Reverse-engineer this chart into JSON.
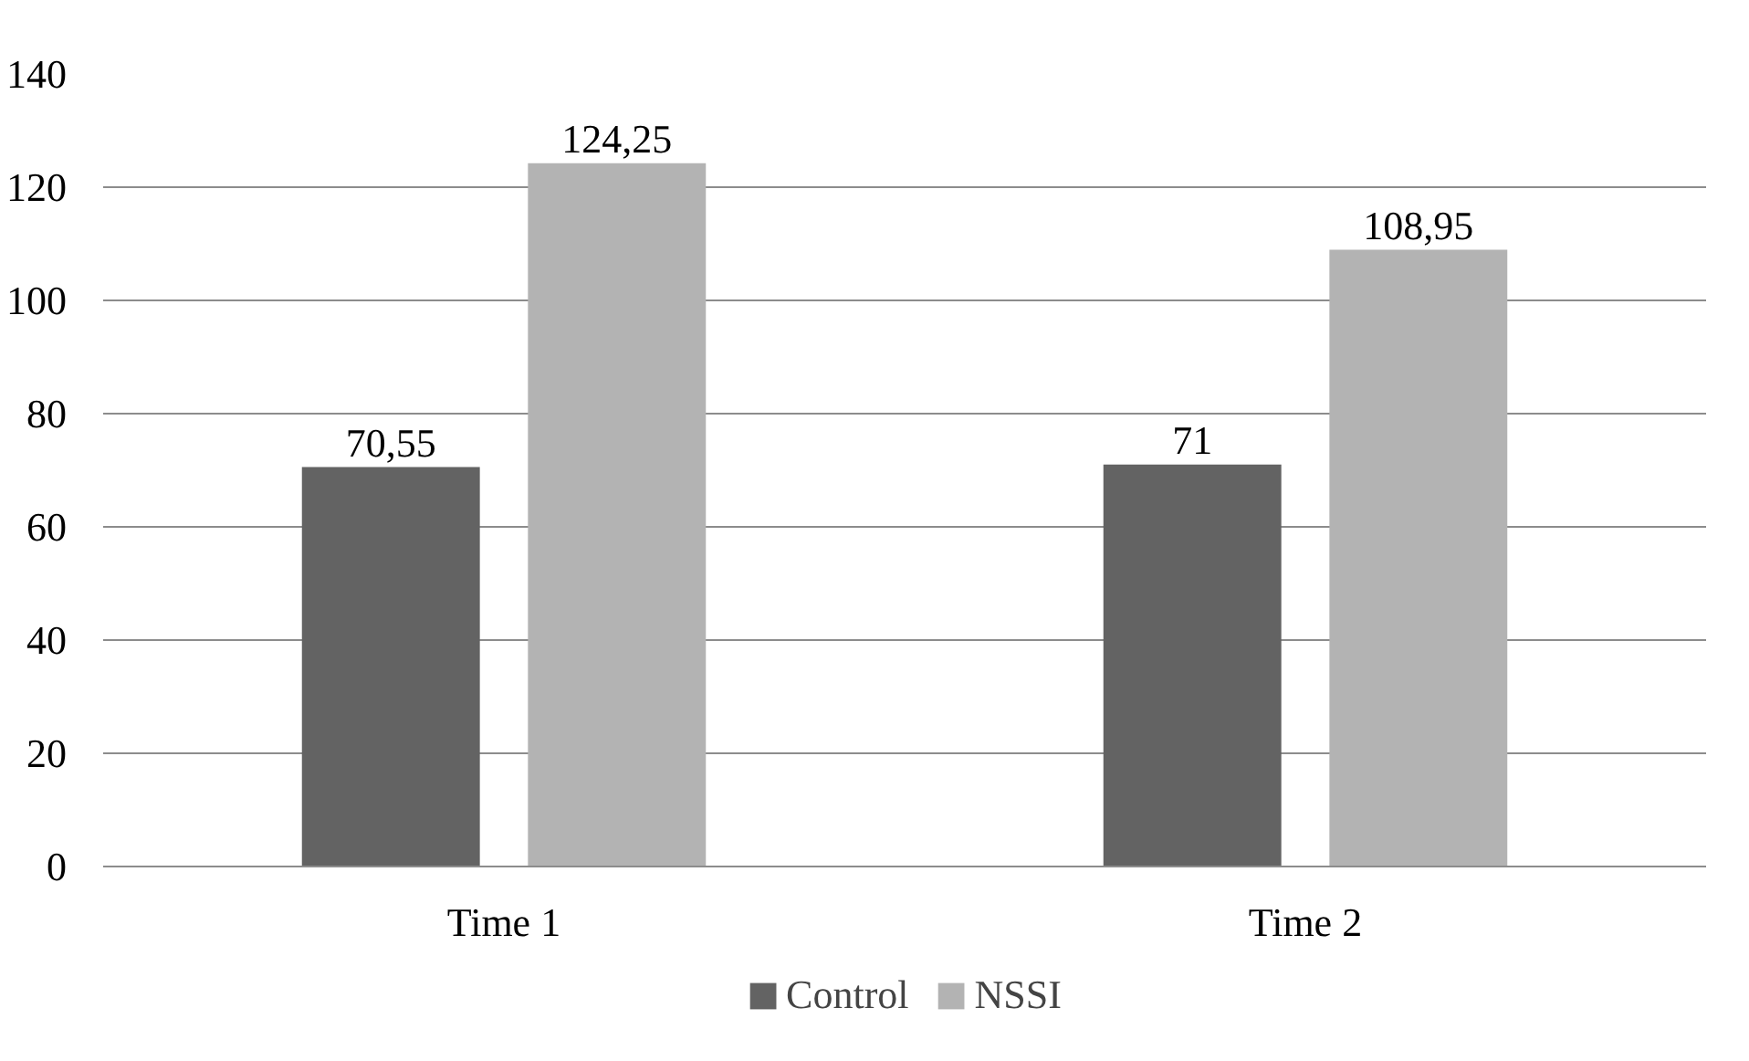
{
  "chart_data": {
    "type": "bar",
    "categories": [
      "Time 1",
      "Time 2"
    ],
    "series": [
      {
        "name": "Control",
        "color": "#636363",
        "values": [
          70.55,
          71
        ],
        "value_labels": [
          "70,55",
          "71"
        ]
      },
      {
        "name": "NSSI",
        "color": "#b3b3b3",
        "values": [
          124.25,
          108.95
        ],
        "value_labels": [
          "124,25",
          "108,95"
        ]
      }
    ],
    "ylim": [
      0,
      140
    ],
    "yticks": [
      0,
      20,
      40,
      60,
      80,
      100,
      120,
      140
    ],
    "grid": "y",
    "legend": "bottom"
  }
}
